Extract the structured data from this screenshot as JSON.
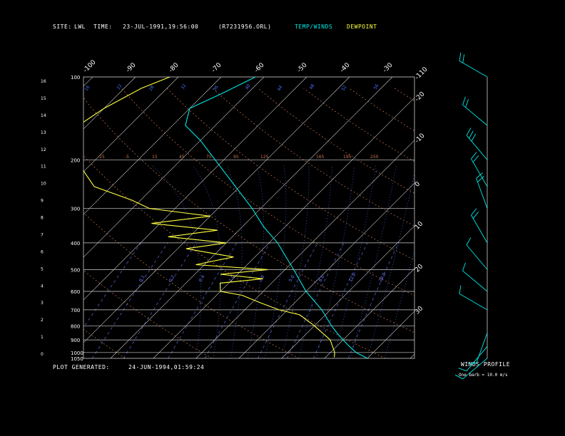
{
  "header": {
    "site_label": "SITE:",
    "site_value": "LWL",
    "time_label": "TIME:",
    "time_value": "23-JUL-1991,19:56:00",
    "file_name": "(R7231956.ORL)",
    "legend_temp": "TEMP/WINDS",
    "legend_dew": "DEWPOINT"
  },
  "footer": {
    "generated_label": "PLOT GENERATED:",
    "generated_value": "24-JUN-1994,01:59:24"
  },
  "winds_panel": {
    "title": "WINDS PROFILE",
    "note": "One barb = 10.0 m/s"
  },
  "colors": {
    "background": "#000000",
    "grid": "#cfcfcf",
    "temperature": "#00e8e8",
    "dewpoint": "#ffff40",
    "dry_adiabat": "#c87850",
    "moist_adiabat": "#4a6cff",
    "mixing_ratio": "#6b7bff"
  },
  "chart_data": {
    "type": "line",
    "subtype": "skew-T log-P thermodynamic diagram",
    "pressure_levels": [
      100,
      200,
      300,
      400,
      500,
      600,
      700,
      800,
      900,
      1000,
      1050
    ],
    "pressure_tick_labels": [
      "100",
      "200",
      "300",
      "400",
      "500",
      "600",
      "700",
      "800",
      "900",
      "1000",
      "1050"
    ],
    "height_km_ticks": [
      "16",
      "15",
      "14",
      "13",
      "12",
      "11",
      "10",
      "9",
      "8",
      "7",
      "6",
      "5",
      "4",
      "3",
      "2",
      "1",
      "0"
    ],
    "isotherm_labels": [
      "-110",
      "-100",
      "-90",
      "-80",
      "-70",
      "-60",
      "-50",
      "-40",
      "-30",
      "-20",
      "-10",
      "0",
      "10",
      "20",
      "30"
    ],
    "dry_adiabat_labels": [
      "-25",
      "-5",
      "15",
      "45",
      "75",
      "95",
      "125",
      "165",
      "195",
      "250"
    ],
    "moist_adiabat_labels": [
      "16",
      "22",
      "28",
      "32",
      "36",
      "40",
      "44",
      "48",
      "52",
      "56"
    ],
    "mixing_ratio_labels": [
      "0.1",
      "0.2",
      "0.4",
      "1.0",
      "2.0",
      "5.0",
      "8.0",
      "12.0",
      "20.0"
    ],
    "ylim_hpa": [
      1050,
      100
    ],
    "xlim_c": [
      -40,
      40
    ],
    "grid": true,
    "temperature_profile": [
      {
        "p": 1050,
        "t": 30
      },
      {
        "p": 1000,
        "t": 26
      },
      {
        "p": 950,
        "t": 23
      },
      {
        "p": 900,
        "t": 20
      },
      {
        "p": 850,
        "t": 17
      },
      {
        "p": 800,
        "t": 14
      },
      {
        "p": 700,
        "t": 8
      },
      {
        "p": 600,
        "t": 0
      },
      {
        "p": 500,
        "t": -8
      },
      {
        "p": 400,
        "t": -18
      },
      {
        "p": 350,
        "t": -25
      },
      {
        "p": 300,
        "t": -32
      },
      {
        "p": 250,
        "t": -41
      },
      {
        "p": 200,
        "t": -52
      },
      {
        "p": 170,
        "t": -60
      },
      {
        "p": 150,
        "t": -67
      },
      {
        "p": 130,
        "t": -70
      },
      {
        "p": 115,
        "t": -66
      },
      {
        "p": 100,
        "t": -62
      }
    ],
    "dewpoint_profile": [
      {
        "p": 1040,
        "td": 22
      },
      {
        "p": 1000,
        "td": 21
      },
      {
        "p": 900,
        "td": 17
      },
      {
        "p": 800,
        "td": 10
      },
      {
        "p": 730,
        "td": 4
      },
      {
        "p": 700,
        "td": -2
      },
      {
        "p": 660,
        "td": -8
      },
      {
        "p": 620,
        "td": -14
      },
      {
        "p": 600,
        "td": -20
      },
      {
        "p": 560,
        "td": -22
      },
      {
        "p": 540,
        "td": -13
      },
      {
        "p": 520,
        "td": -24
      },
      {
        "p": 500,
        "td": -14
      },
      {
        "p": 480,
        "td": -32
      },
      {
        "p": 450,
        "td": -25
      },
      {
        "p": 420,
        "td": -38
      },
      {
        "p": 400,
        "td": -30
      },
      {
        "p": 380,
        "td": -45
      },
      {
        "p": 360,
        "td": -35
      },
      {
        "p": 340,
        "td": -52
      },
      {
        "p": 320,
        "td": -40
      },
      {
        "p": 300,
        "td": -56
      },
      {
        "p": 280,
        "td": -62
      },
      {
        "p": 250,
        "td": -74
      },
      {
        "p": 220,
        "td": -80
      },
      {
        "p": 200,
        "td": -84
      },
      {
        "p": 170,
        "td": -90
      },
      {
        "p": 150,
        "td": -92
      },
      {
        "p": 130,
        "td": -90
      },
      {
        "p": 110,
        "td": -86
      },
      {
        "p": 100,
        "td": -82
      }
    ],
    "winds": [
      {
        "p": 1050,
        "dir": 230,
        "spd": 10
      },
      {
        "p": 950,
        "dir": 220,
        "spd": 12
      },
      {
        "p": 850,
        "dir": 200,
        "spd": 10
      },
      {
        "p": 700,
        "dir": 300,
        "spd": 12
      },
      {
        "p": 600,
        "dir": 310,
        "spd": 10
      },
      {
        "p": 500,
        "dir": 320,
        "spd": 14
      },
      {
        "p": 400,
        "dir": 330,
        "spd": 16
      },
      {
        "p": 300,
        "dir": 340,
        "spd": 22
      },
      {
        "p": 250,
        "dir": 330,
        "spd": 24
      },
      {
        "p": 200,
        "dir": 320,
        "spd": 25
      },
      {
        "p": 150,
        "dir": 310,
        "spd": 22
      },
      {
        "p": 100,
        "dir": 300,
        "spd": 15
      }
    ]
  }
}
